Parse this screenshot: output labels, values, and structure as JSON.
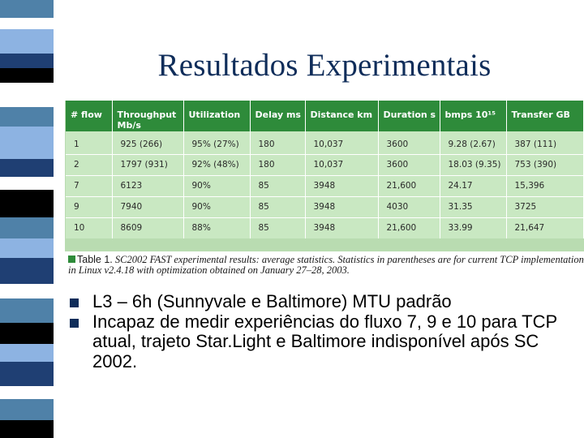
{
  "slide": {
    "title": "Resultados Experimentais"
  },
  "decor": {
    "strip_colors": [
      "#4f81a8",
      "#8db3e2",
      "#1f3f73",
      "#ffffff",
      "#000000"
    ],
    "accent": "#2e8b3a",
    "title_color": "#0f2d5a"
  },
  "table": {
    "headers": [
      "# flow",
      "Throughput Mb/s",
      "Utilization",
      "Delay ms",
      "Distance km",
      "Duration s",
      "bmps 10¹⁵",
      "Transfer GB"
    ],
    "rows": [
      [
        "1",
        "925 (266)",
        "95% (27%)",
        "180",
        "10,037",
        "3600",
        "9.28 (2.67)",
        "387 (111)"
      ],
      [
        "2",
        "1797 (931)",
        "92% (48%)",
        "180",
        "10,037",
        "3600",
        "18.03 (9.35)",
        "753 (390)"
      ],
      [
        "7",
        "6123",
        "90%",
        "85",
        "3948",
        "21,600",
        "24.17",
        "15,396"
      ],
      [
        "9",
        "7940",
        "90%",
        "85",
        "3948",
        "4030",
        "31.35",
        "3725"
      ],
      [
        "10",
        "8609",
        "88%",
        "85",
        "3948",
        "21,600",
        "33.99",
        "21,647"
      ]
    ]
  },
  "caption": {
    "label": "Table 1.",
    "text": "SC2002 FAST experimental results: average statistics. Statistics in parentheses are for current TCP implementation in Linux v2.4.18 with optimization obtained on January 27–28, 2003."
  },
  "bullets": [
    "L3 – 6h (Sunnyvale e Baltimore) MTU padrão",
    "Incapaz de medir experiências do fluxo 7, 9 e 10 para TCP atual, trajeto Star.Light e Baltimore indisponível após SC 2002."
  ]
}
